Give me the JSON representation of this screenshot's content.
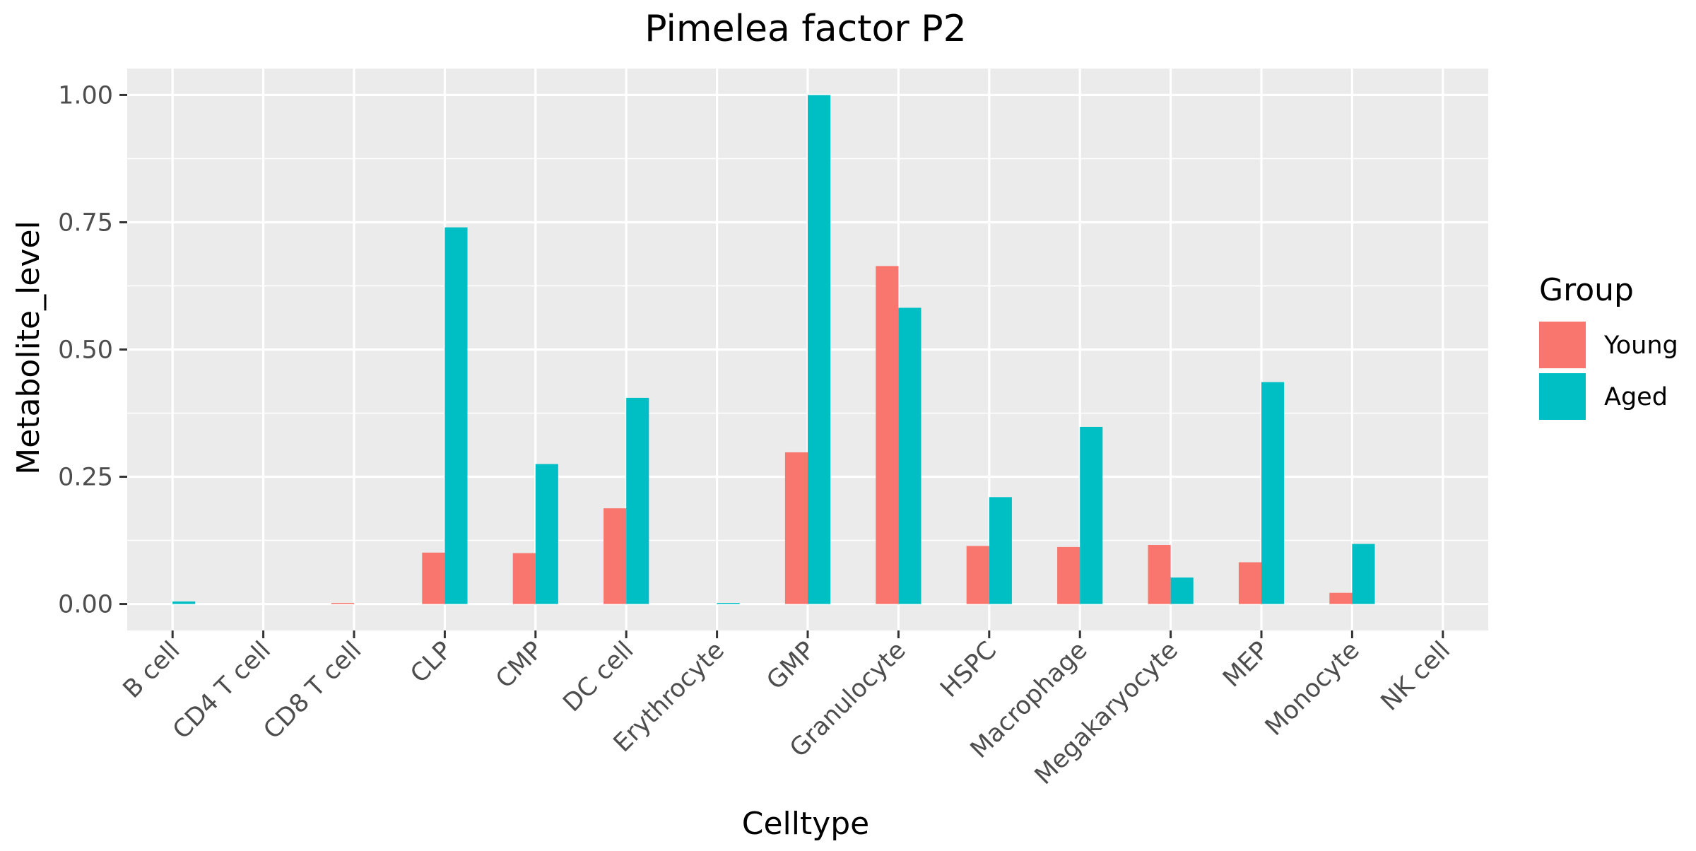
{
  "chart_data": {
    "type": "bar",
    "title": "Pimelea factor P2",
    "xlabel": "Celltype",
    "ylabel": "Metabolite_level",
    "categories": [
      "B cell",
      "CD4 T cell",
      "CD8 T cell",
      "CLP",
      "CMP",
      "DC cell",
      "Erythrocyte",
      "GMP",
      "Granulocyte",
      "HSPC",
      "Macrophage",
      "Megakaryocyte",
      "MEP",
      "Monocyte",
      "NK cell"
    ],
    "series": [
      {
        "name": "Young",
        "color": "#F8766D",
        "values": [
          0,
          0,
          0.002,
          0.101,
          0.1,
          0.188,
          0,
          0.298,
          0.664,
          0.114,
          0.112,
          0.116,
          0.082,
          0.022,
          0
        ]
      },
      {
        "name": "Aged",
        "color": "#00BFC4",
        "values": [
          0.005,
          0,
          0,
          0.74,
          0.275,
          0.405,
          0.002,
          1.0,
          0.582,
          0.21,
          0.348,
          0.052,
          0.436,
          0.118,
          0
        ]
      }
    ],
    "ylim": [
      -0.052,
      1.052
    ],
    "yticks": [
      "0.00",
      "0.25",
      "0.50",
      "0.75",
      "1.00"
    ],
    "ytick_values": [
      0,
      0.25,
      0.5,
      0.75,
      1.0
    ],
    "legend": {
      "title": "Group",
      "placement": "right"
    },
    "grid": true,
    "panel_background": "#EBEBEB"
  }
}
